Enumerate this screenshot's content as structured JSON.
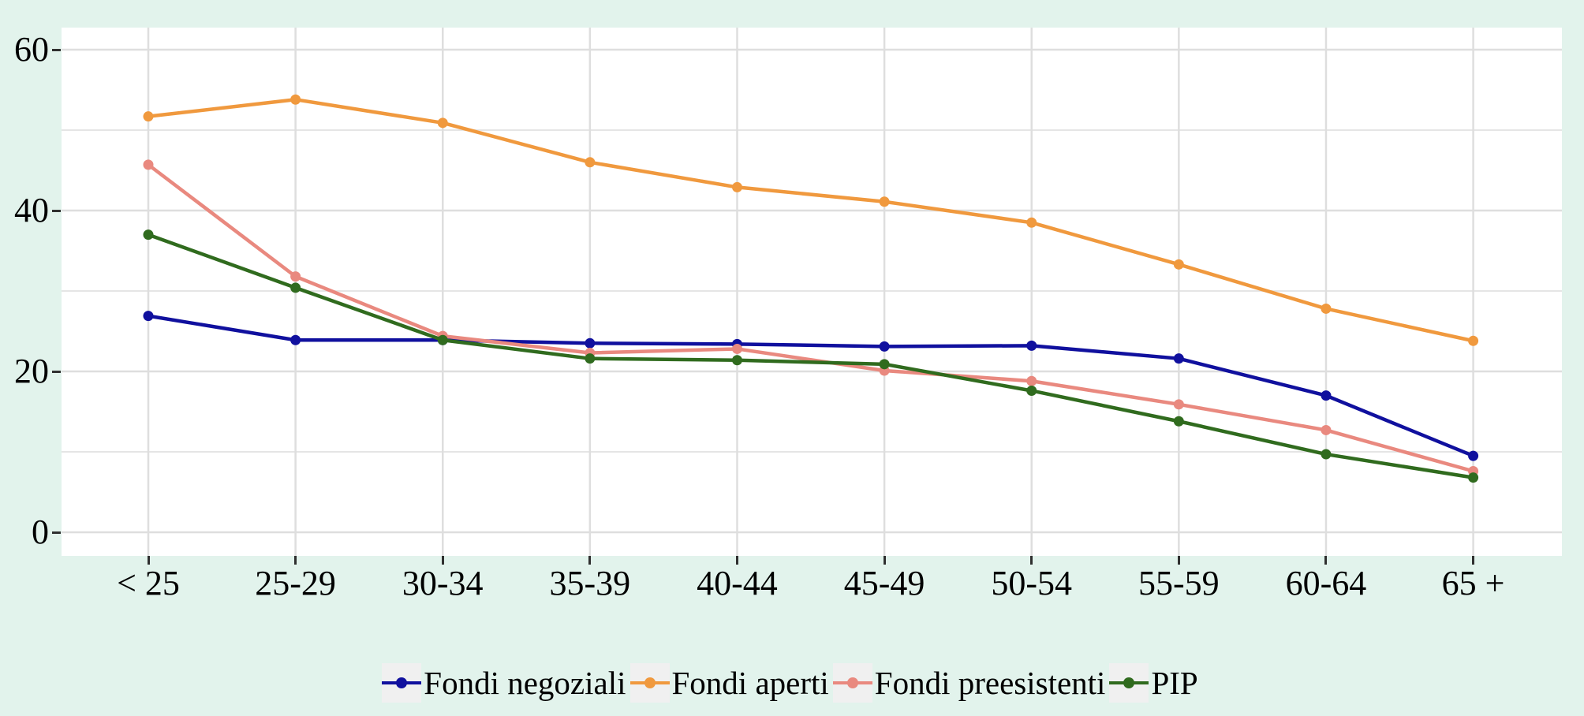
{
  "page": {
    "background_color": "#e2f3ec",
    "panel_color": "#ffffff",
    "gridline_color": "#dedede",
    "tick_color": "#2f2f2f",
    "legend_key_color": "#f0f0f0"
  },
  "chart_data": {
    "type": "line",
    "title": "",
    "xlabel": "",
    "ylabel": "",
    "categories": [
      "< 25",
      "25-29",
      "30-34",
      "35-39",
      "40-44",
      "45-49",
      "50-54",
      "55-59",
      "60-64",
      "65 +"
    ],
    "series": [
      {
        "name": "Fondi negoziali",
        "color": "#10109e",
        "values": [
          26.9,
          23.9,
          23.9,
          23.5,
          23.4,
          23.1,
          23.2,
          21.6,
          17.0,
          9.5
        ]
      },
      {
        "name": "Fondi aperti",
        "color": "#f0993e",
        "values": [
          51.7,
          53.8,
          50.9,
          46.0,
          42.9,
          41.1,
          38.5,
          33.3,
          27.8,
          23.8
        ]
      },
      {
        "name": "Fondi preesistenti",
        "color": "#e9897f",
        "values": [
          45.7,
          31.8,
          24.4,
          22.3,
          22.8,
          20.1,
          18.8,
          15.9,
          12.7,
          7.6
        ]
      },
      {
        "name": "PIP",
        "color": "#306b1e",
        "values": [
          37.0,
          30.4,
          23.9,
          21.6,
          21.4,
          20.9,
          17.6,
          13.8,
          9.7,
          6.8
        ]
      }
    ],
    "y_tick_labels": [
      0,
      20,
      40,
      60
    ],
    "y_grid_values": [
      0,
      10,
      20,
      30,
      40,
      50,
      60
    ],
    "ylim": [
      -2.9,
      62.7
    ],
    "grid": "on",
    "legend_position": "bottom-center"
  }
}
